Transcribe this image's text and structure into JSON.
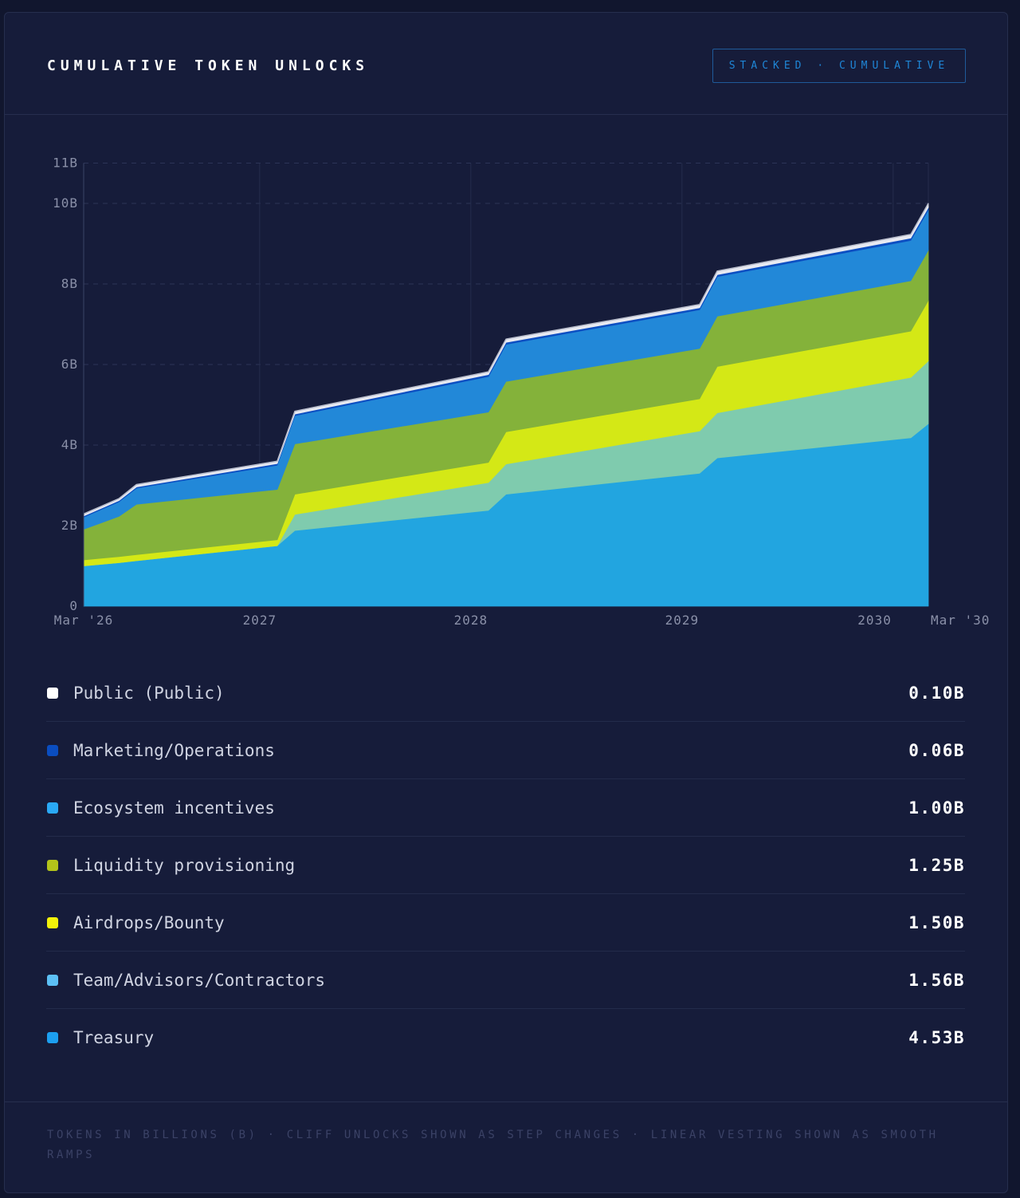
{
  "header": {
    "title": "CUMULATIVE TOKEN UNLOCKS",
    "badge": "STACKED · CUMULATIVE"
  },
  "chart_data": {
    "type": "area",
    "stacked": true,
    "title": "CUMULATIVE TOKEN UNLOCKS",
    "xlabel": "",
    "ylabel": "",
    "unit": "B",
    "ylim": [
      0,
      11
    ],
    "xlim": [
      "2026-03",
      "2030-03"
    ],
    "y_ticks": [
      "0",
      "2B",
      "4B",
      "6B",
      "8B",
      "10B",
      "11B"
    ],
    "y_tick_values": [
      0,
      2,
      4,
      6,
      8,
      10,
      11
    ],
    "x_ticks": [
      {
        "label": "Mar '26",
        "date": "2026-03"
      },
      {
        "label": "2027",
        "date": "2027-01"
      },
      {
        "label": "2028",
        "date": "2028-01"
      },
      {
        "label": "2029",
        "date": "2029-01"
      },
      {
        "label": "2030",
        "date": "2030-01"
      },
      {
        "label": "Mar '30",
        "date": "2030-03"
      }
    ],
    "grid": true,
    "x": [
      "2026-03",
      "2026-04",
      "2026-05",
      "2026-06",
      "2027-02",
      "2027-03",
      "2028-02",
      "2028-03",
      "2029-02",
      "2029-03",
      "2030-02",
      "2030-03"
    ],
    "series": [
      {
        "name": "Treasury",
        "color": "#22a5e0",
        "values": [
          1.0,
          1.04,
          1.08,
          1.13,
          1.5,
          1.88,
          2.38,
          2.78,
          3.3,
          3.68,
          4.18,
          4.53
        ]
      },
      {
        "name": "Team/Advisors/Contractors",
        "color": "#7fcbae",
        "values": [
          0,
          0,
          0,
          0,
          0,
          0.4,
          0.69,
          0.75,
          1.05,
          1.12,
          1.5,
          1.56
        ]
      },
      {
        "name": "Airdrops/Bounty",
        "color": "#d4e816",
        "values": [
          0.15,
          0.15,
          0.15,
          0.15,
          0.15,
          0.5,
          0.5,
          0.8,
          0.8,
          1.15,
          1.15,
          1.5
        ]
      },
      {
        "name": "Liquidity provisioning",
        "color": "#84b23a",
        "values": [
          0.76,
          0.88,
          1.0,
          1.25,
          1.25,
          1.25,
          1.25,
          1.25,
          1.25,
          1.25,
          1.25,
          1.25
        ]
      },
      {
        "name": "Ecosystem incentives",
        "color": "#2288d8",
        "values": [
          0.3,
          0.33,
          0.36,
          0.4,
          0.6,
          0.7,
          0.88,
          0.92,
          0.96,
          0.98,
          1.0,
          1.0
        ]
      },
      {
        "name": "Marketing/Operations",
        "color": "#0c4fc2",
        "values": [
          0.03,
          0.03,
          0.03,
          0.03,
          0.04,
          0.04,
          0.05,
          0.05,
          0.05,
          0.05,
          0.06,
          0.06
        ]
      },
      {
        "name": "Public (Public)",
        "color": "#e8eaf2",
        "values": [
          0.05,
          0.05,
          0.05,
          0.06,
          0.06,
          0.07,
          0.07,
          0.08,
          0.08,
          0.09,
          0.09,
          0.1
        ]
      }
    ]
  },
  "legend": [
    {
      "label": "Public (Public)",
      "value": "0.10B",
      "swatch": "#ffffff"
    },
    {
      "label": "Marketing/Operations",
      "value": "0.06B",
      "swatch": "#0a4dc0"
    },
    {
      "label": "Ecosystem incentives",
      "value": "1.00B",
      "swatch": "#2aa9f5"
    },
    {
      "label": "Liquidity provisioning",
      "value": "1.25B",
      "swatch": "#b3c41a"
    },
    {
      "label": "Airdrops/Bounty",
      "value": "1.50B",
      "swatch": "#f2f20a"
    },
    {
      "label": "Team/Advisors/Contractors",
      "value": "1.56B",
      "swatch": "#5cc0f5"
    },
    {
      "label": "Treasury",
      "value": "4.53B",
      "swatch": "#1c9ff0"
    }
  ],
  "footer": {
    "note": "TOKENS IN BILLIONS (B) · CLIFF UNLOCKS SHOWN AS STEP CHANGES · LINEAR VESTING SHOWN AS SMOOTH RAMPS"
  }
}
